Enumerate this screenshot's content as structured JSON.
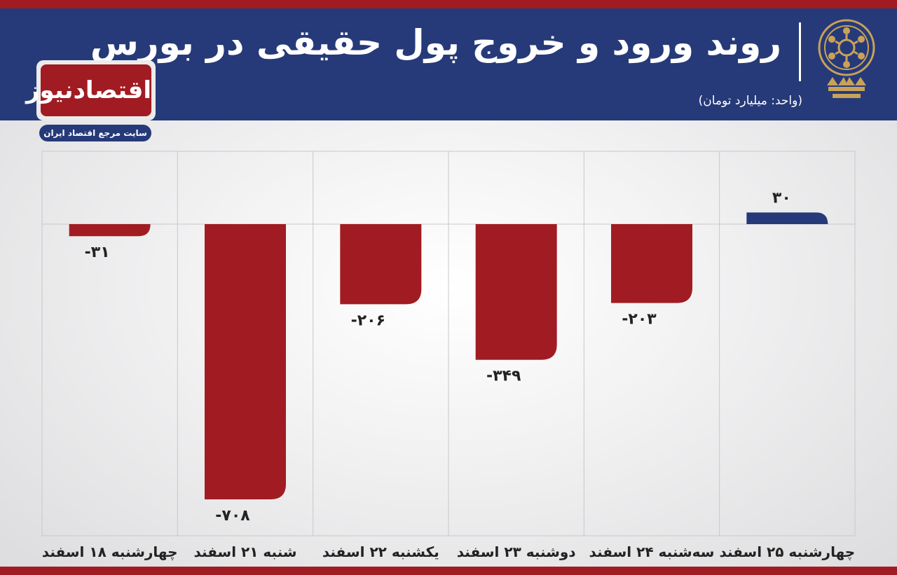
{
  "header": {
    "title": "روند ورود و خروج پول حقیقی در بورس",
    "unit": "(واحد: میلیارد تومان)"
  },
  "brand": {
    "name": "اقتصادنیوز",
    "tagline": "سایت مرجع اقتصاد ایران"
  },
  "colors": {
    "header_bg": "#263a79",
    "accent_red": "#a11c22",
    "positive_bar": "#263a79",
    "negative_bar": "#a11c22"
  },
  "icons": {
    "emblem": "stock-exchange-emblem-icon"
  },
  "chart_data": {
    "type": "bar",
    "title": "روند ورود و خروج پول حقیقی در بورس",
    "unit": "(واحد: میلیارد تومان)",
    "categories": [
      "چهارشنبه ۲۵ اسفند",
      "سه‌شنبه ۲۴ اسفند",
      "دوشنبه ۲۳ اسفند",
      "یکشنبه ۲۲ اسفند",
      "شنبه ۲۱ اسفند",
      "چهارشنبه ۱۸ اسفند"
    ],
    "values": [
      30,
      -203,
      -349,
      -206,
      -708,
      -31
    ],
    "value_labels": [
      "۳۰",
      "-۲۰۳",
      "-۳۴۹",
      "-۲۰۶",
      "-۷۰۸",
      "-۳۱"
    ],
    "x_direction": "right-to-left",
    "ylim": [
      -708,
      30
    ],
    "grid": true,
    "legend": "none"
  }
}
